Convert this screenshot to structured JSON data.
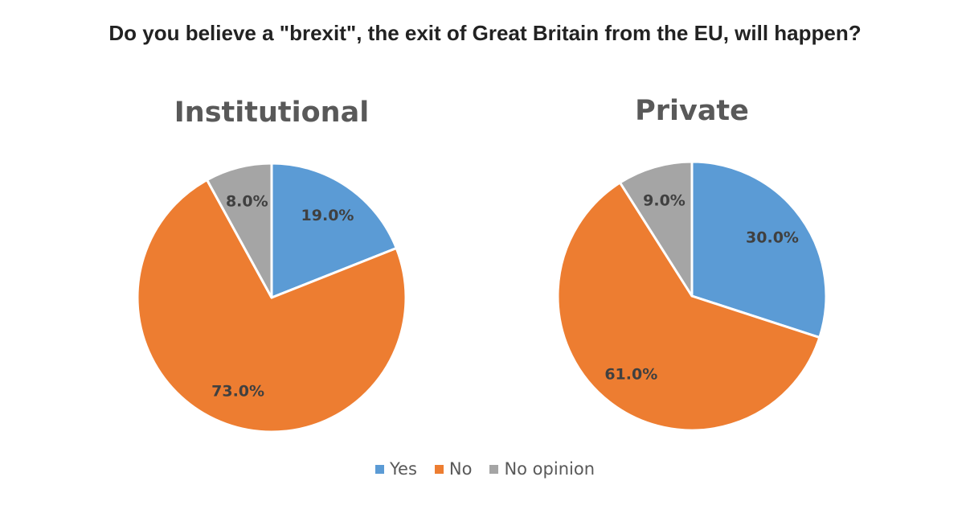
{
  "title": "Do you believe a \"brexit\", the exit of Great Britain from the EU, will happen?",
  "legend": {
    "placement": "bottom",
    "items": [
      {
        "label": "Yes",
        "color": "#5B9BD5"
      },
      {
        "label": "No",
        "color": "#ED7D31"
      },
      {
        "label": "No opinion",
        "color": "#A5A5A5"
      }
    ]
  },
  "chart_data": [
    {
      "type": "pie",
      "title": "Institutional",
      "categories": [
        "Yes",
        "No",
        "No opinion"
      ],
      "values": [
        19.0,
        73.0,
        8.0
      ],
      "labels": [
        "19.0%",
        "73.0%",
        "8.0%"
      ],
      "colors": [
        "#5B9BD5",
        "#ED7D31",
        "#A5A5A5"
      ]
    },
    {
      "type": "pie",
      "title": "Private",
      "categories": [
        "Yes",
        "No",
        "No opinion"
      ],
      "values": [
        30.0,
        61.0,
        9.0
      ],
      "labels": [
        "30.0%",
        "61.0%",
        "9.0%"
      ],
      "colors": [
        "#5B9BD5",
        "#ED7D31",
        "#A5A5A5"
      ]
    }
  ]
}
